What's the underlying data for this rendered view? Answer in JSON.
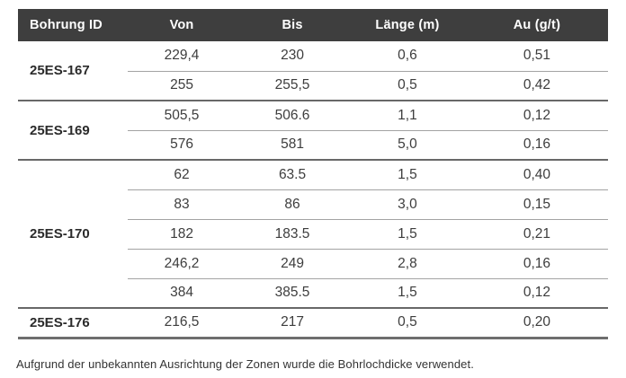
{
  "table": {
    "columns": [
      "Bohrung ID",
      "Von",
      "Bis",
      "Länge (m)",
      "Au (g/t)"
    ],
    "groups": [
      {
        "id": "25ES-167",
        "rows": [
          [
            "229,4",
            "230",
            "0,6",
            "0,51"
          ],
          [
            "255",
            "255,5",
            "0,5",
            "0,42"
          ]
        ]
      },
      {
        "id": "25ES-169",
        "rows": [
          [
            "505,5",
            "506.6",
            "1,1",
            "0,12"
          ],
          [
            "576",
            "581",
            "5,0",
            "0,16"
          ]
        ]
      },
      {
        "id": "25ES-170",
        "rows": [
          [
            "62",
            "63.5",
            "1,5",
            "0,40"
          ],
          [
            "83",
            "86",
            "3,0",
            "0,15"
          ],
          [
            "182",
            "183.5",
            "1,5",
            "0,21"
          ],
          [
            "246,2",
            "249",
            "2,8",
            "0,16"
          ],
          [
            "384",
            "385.5",
            "1,5",
            "0,12"
          ]
        ]
      },
      {
        "id": "25ES-176",
        "rows": [
          [
            "216,5",
            "217",
            "0,5",
            "0,20"
          ]
        ]
      }
    ]
  },
  "footnote": "Aufgrund der unbekannten Ausrichtung der Zonen wurde die Bohrlochdicke verwendet.",
  "colors": {
    "header_bg": "#3e3e3e",
    "header_text": "#ffffff",
    "body_text": "#3d3d3d",
    "group_line": "#686868",
    "row_line": "#a3a3a3",
    "bottom_line": "#6e6e6e"
  }
}
